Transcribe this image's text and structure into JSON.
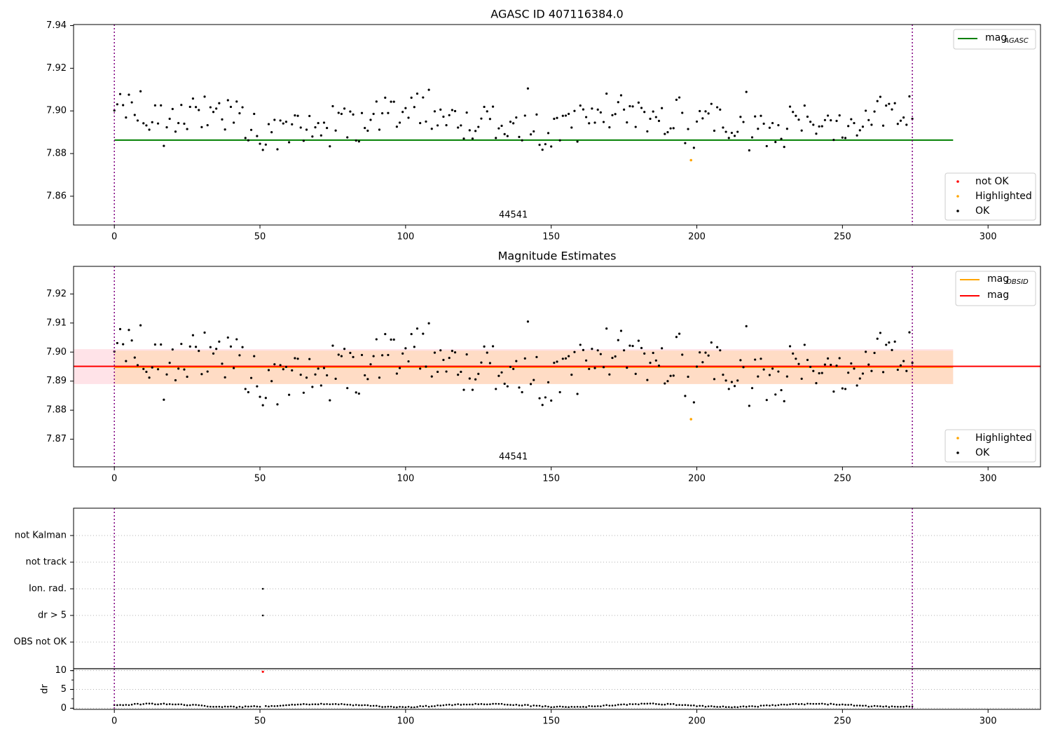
{
  "figure": {
    "top_title": "AGASC ID 407116384.0",
    "middle_title": "Magnitude Estimates",
    "obsid_label": "44541"
  },
  "colors": {
    "agasc_line": "#008000",
    "obsid_line": "#ffa500",
    "mag_line": "#ff0000",
    "band_outer": "#ffc0cb",
    "band_inner": "#ffdab9",
    "ok": "#000000",
    "highlighted": "#ffa500",
    "not_ok": "#ff0000",
    "vline": "#800080",
    "grid": "#b0b0b0"
  },
  "legend_top_lines": [
    {
      "base": "mag",
      "sub": "AGASC",
      "color": "#008000"
    }
  ],
  "legend_top_points": [
    {
      "label": "not OK",
      "color": "#ff0000"
    },
    {
      "label": "Highlighted",
      "color": "#ffa500"
    },
    {
      "label": "OK",
      "color": "#000000"
    }
  ],
  "legend_mid_lines": [
    {
      "base": "mag",
      "sub": "OBSID",
      "color": "#ffa500"
    },
    {
      "base": "mag",
      "sub": "",
      "color": "#ff0000"
    }
  ],
  "legend_mid_points": [
    {
      "label": "Highlighted",
      "color": "#ffa500"
    },
    {
      "label": "OK",
      "color": "#000000"
    }
  ],
  "flag_labels": [
    "not Kalman",
    "not track",
    "Ion. rad.",
    "dr > 5",
    "OBS not OK"
  ],
  "dr_label": "dr",
  "chart_data": [
    {
      "type": "scatter",
      "title": "AGASC ID 407116384.0",
      "xlim": [
        -14,
        318
      ],
      "ylim": [
        7.8465,
        7.9405
      ],
      "x_ticks": [
        0,
        50,
        100,
        150,
        200,
        250,
        300
      ],
      "y_ticks": [
        7.86,
        7.88,
        7.9,
        7.92,
        7.94
      ],
      "y_tick_labels": [
        "7.86",
        "7.88",
        "7.90",
        "7.92",
        "7.94"
      ],
      "mag_agasc": 7.8863,
      "hline_xmax": 288,
      "obsid_bounds": [
        0,
        274
      ],
      "obsid": "44541",
      "highlighted": [
        [
          198,
          7.8769
        ]
      ],
      "legend_lines": [
        "mag_AGASC"
      ],
      "legend_points": [
        "not OK",
        "Highlighted",
        "OK"
      ]
    },
    {
      "type": "scatter",
      "title": "Magnitude Estimates",
      "xlim": [
        -14,
        318
      ],
      "ylim": [
        7.8605,
        7.9295
      ],
      "x_ticks": [
        0,
        50,
        100,
        150,
        200,
        250,
        300
      ],
      "y_ticks": [
        7.87,
        7.88,
        7.89,
        7.9,
        7.91,
        7.92
      ],
      "y_tick_labels": [
        "7.87",
        "7.88",
        "7.89",
        "7.90",
        "7.91",
        "7.92"
      ],
      "mag": 7.8951,
      "mag_obsid": 7.8948,
      "band_outer": [
        7.889,
        7.901
      ],
      "band_inner": [
        7.889,
        7.9005
      ],
      "band_xmax": 288,
      "obsid_bounds": [
        0,
        274
      ],
      "obsid": "44541",
      "highlighted": [
        [
          198,
          7.8769
        ]
      ],
      "legend_lines": [
        "mag_OBSID",
        "mag"
      ],
      "legend_points": [
        "Highlighted",
        "OK"
      ]
    },
    {
      "type": "scatter",
      "title": "",
      "xlim": [
        -14,
        318
      ],
      "categories": [
        "not Kalman",
        "not track",
        "Ion. rad.",
        "dr > 5",
        "OBS not OK"
      ],
      "flagged": [
        {
          "x": 51,
          "flags": [
            "Ion. rad.",
            "dr > 5"
          ]
        }
      ]
    },
    {
      "type": "scatter",
      "title": "",
      "xlim": [
        -14,
        318
      ],
      "ylim": [
        -0.3,
        10.5
      ],
      "x_ticks": [
        0,
        50,
        100,
        150,
        200,
        250,
        300
      ],
      "y_ticks": [
        0,
        5,
        10
      ],
      "y_tick_labels": [
        "0",
        "5",
        "10"
      ],
      "ylabel": "dr",
      "red_points": [
        [
          51,
          9.7
        ]
      ],
      "obsid_bounds": [
        0,
        274
      ]
    }
  ]
}
